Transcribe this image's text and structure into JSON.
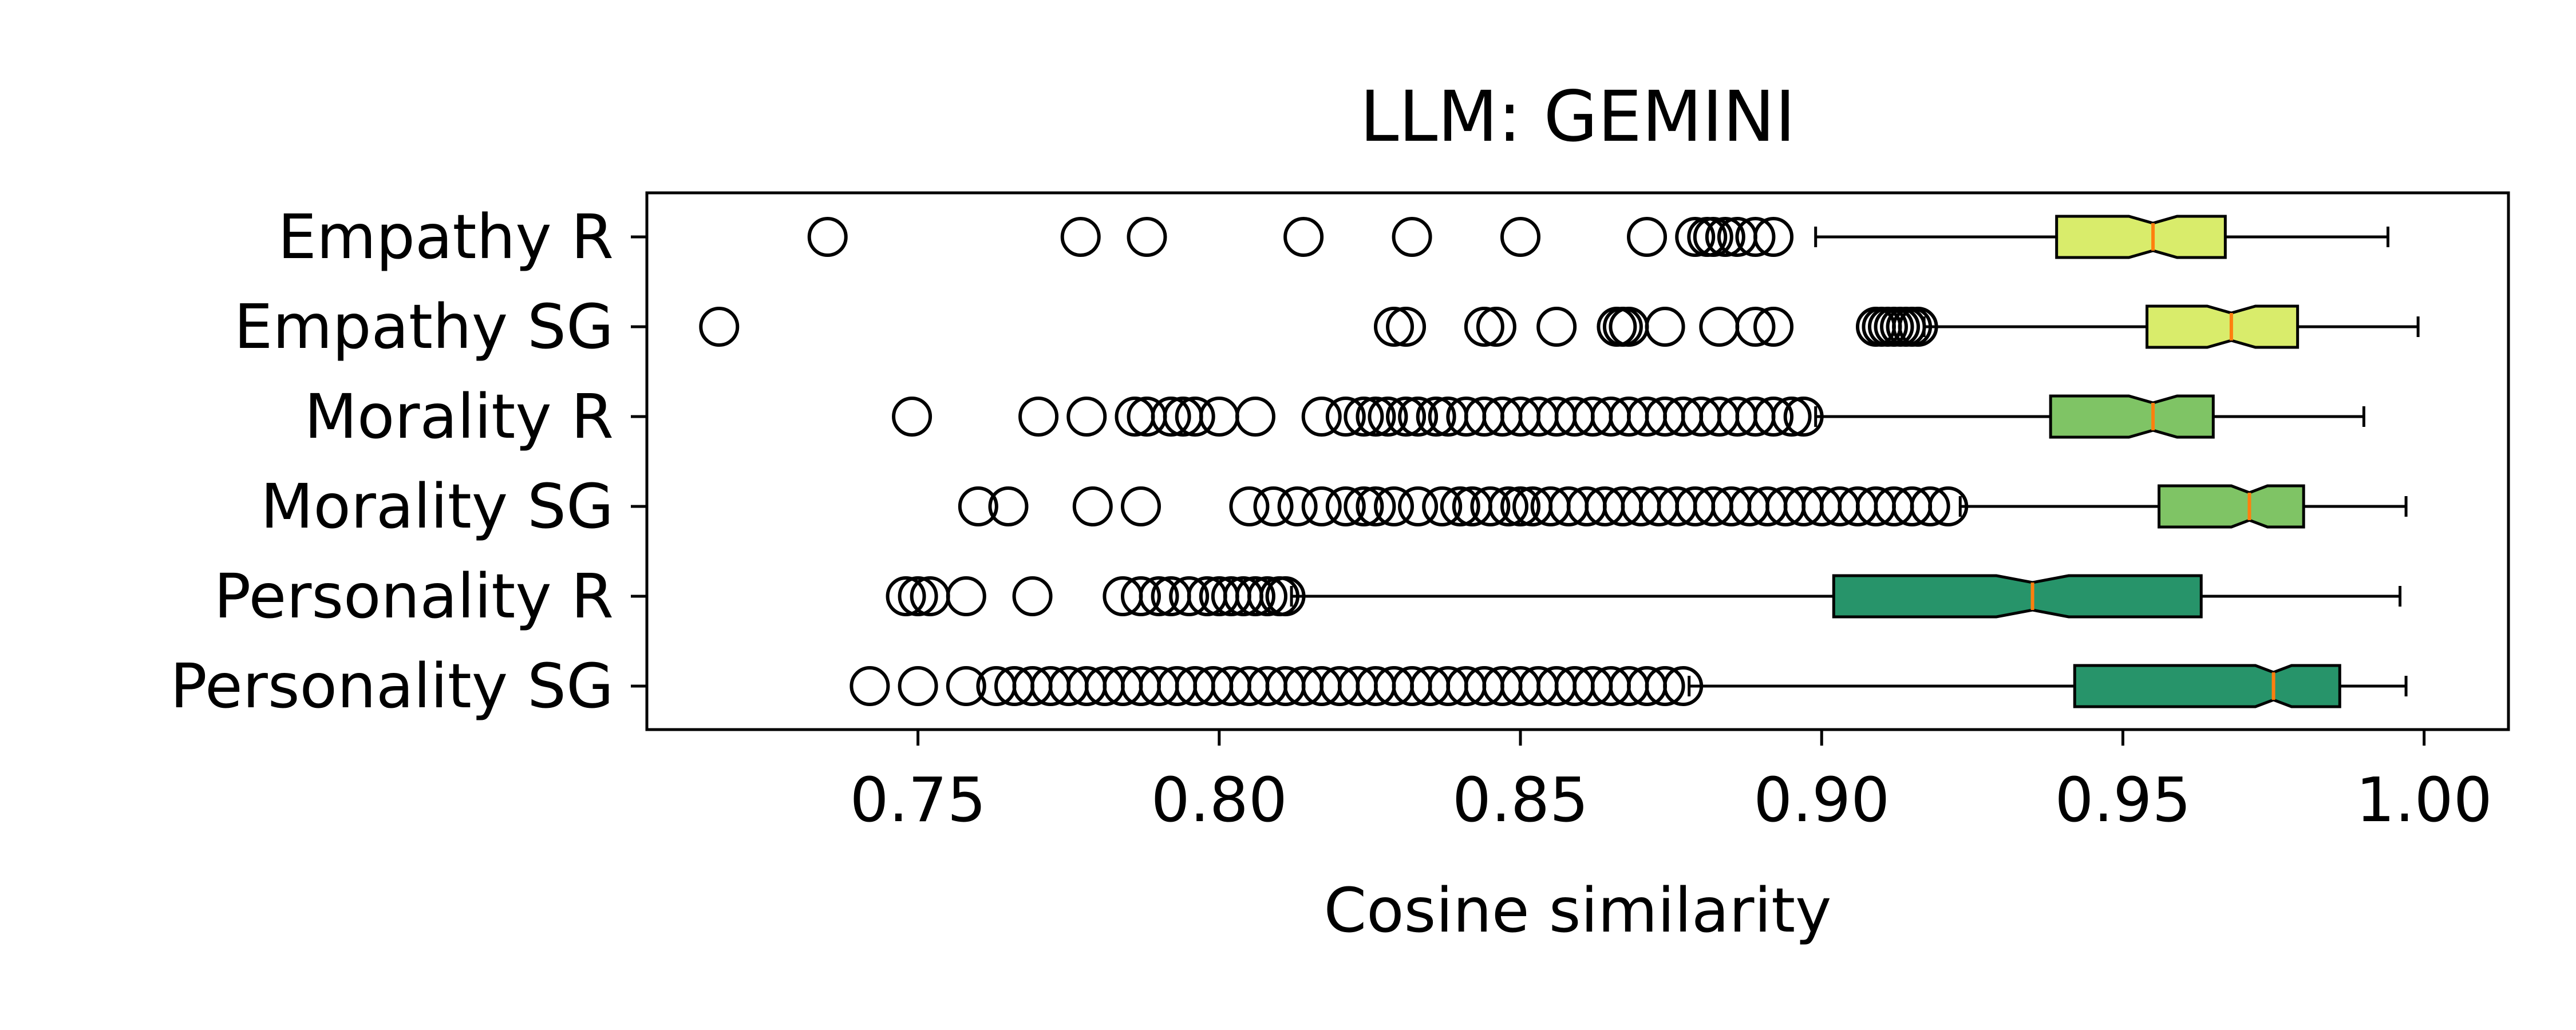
{
  "chart_data": {
    "type": "boxplot",
    "orientation": "horizontal",
    "title": "LLM: GEMINI",
    "xlabel": "Cosine similarity",
    "ylabel": "",
    "xlim": [
      0.705,
      1.014
    ],
    "xticks": [
      0.75,
      0.8,
      0.85,
      0.9,
      0.95,
      1.0
    ],
    "xtick_labels": [
      "0.75",
      "0.80",
      "0.85",
      "0.90",
      "0.95",
      "1.00"
    ],
    "grid": false,
    "notched": true,
    "median_color": "#ff7f0e",
    "series": [
      {
        "name": "Empathy   R",
        "color": "#d9ec6b",
        "whislo": 0.899,
        "q1": 0.939,
        "med": 0.955,
        "q3": 0.967,
        "whishi": 0.994,
        "notch": [
          0.951,
          0.959
        ],
        "fliers": [
          0.735,
          0.777,
          0.788,
          0.814,
          0.832,
          0.85,
          0.871,
          0.879,
          0.881,
          0.882,
          0.884,
          0.886,
          0.889,
          0.892
        ]
      },
      {
        "name": "Empathy SG",
        "color": "#d9ec6b",
        "whislo": 0.917,
        "q1": 0.954,
        "med": 0.968,
        "q3": 0.979,
        "whishi": 0.999,
        "notch": [
          0.964,
          0.972
        ],
        "fliers": [
          0.717,
          0.829,
          0.831,
          0.844,
          0.846,
          0.856,
          0.866,
          0.867,
          0.868,
          0.874,
          0.883,
          0.889,
          0.892,
          0.909,
          0.91,
          0.911,
          0.912,
          0.913,
          0.914,
          0.915,
          0.916
        ]
      },
      {
        "name": "Morality   R",
        "color": "#7fc465",
        "whislo": 0.899,
        "q1": 0.938,
        "med": 0.955,
        "q3": 0.965,
        "whishi": 0.99,
        "notch": [
          0.951,
          0.959
        ],
        "fliers": [
          0.749,
          0.77,
          0.778,
          0.786,
          0.788,
          0.792,
          0.794,
          0.796,
          0.8,
          0.806,
          0.817,
          0.821,
          0.824,
          0.826,
          0.828,
          0.831,
          0.833,
          0.836,
          0.838,
          0.841,
          0.844,
          0.847,
          0.85,
          0.853,
          0.856,
          0.859,
          0.862,
          0.865,
          0.868,
          0.871,
          0.874,
          0.877,
          0.88,
          0.883,
          0.886,
          0.889,
          0.892,
          0.895,
          0.897
        ]
      },
      {
        "name": "Morality SG",
        "color": "#7fc465",
        "whislo": 0.923,
        "q1": 0.956,
        "med": 0.971,
        "q3": 0.98,
        "whishi": 0.997,
        "notch": [
          0.968,
          0.974
        ],
        "fliers": [
          0.76,
          0.765,
          0.779,
          0.787,
          0.805,
          0.809,
          0.813,
          0.817,
          0.821,
          0.824,
          0.826,
          0.829,
          0.833,
          0.837,
          0.84,
          0.842,
          0.845,
          0.848,
          0.85,
          0.852,
          0.855,
          0.858,
          0.861,
          0.864,
          0.867,
          0.87,
          0.873,
          0.876,
          0.879,
          0.882,
          0.885,
          0.888,
          0.891,
          0.894,
          0.897,
          0.9,
          0.903,
          0.906,
          0.909,
          0.912,
          0.915,
          0.918,
          0.921
        ]
      },
      {
        "name": "Personality   R",
        "color": "#27946a",
        "whislo": 0.812,
        "q1": 0.902,
        "med": 0.935,
        "q3": 0.963,
        "whishi": 0.996,
        "notch": [
          0.929,
          0.941
        ],
        "fliers": [
          0.748,
          0.75,
          0.752,
          0.758,
          0.769,
          0.784,
          0.787,
          0.79,
          0.792,
          0.795,
          0.798,
          0.8,
          0.802,
          0.804,
          0.806,
          0.808,
          0.81,
          0.811
        ]
      },
      {
        "name": "Personality SG",
        "color": "#27946a",
        "whislo": 0.878,
        "q1": 0.942,
        "med": 0.975,
        "q3": 0.986,
        "whishi": 0.997,
        "notch": [
          0.972,
          0.978
        ],
        "fliers": [
          0.742,
          0.75,
          0.758,
          0.763,
          0.766,
          0.769,
          0.772,
          0.775,
          0.778,
          0.781,
          0.784,
          0.787,
          0.79,
          0.793,
          0.796,
          0.799,
          0.802,
          0.805,
          0.808,
          0.811,
          0.814,
          0.817,
          0.82,
          0.823,
          0.826,
          0.829,
          0.832,
          0.835,
          0.838,
          0.841,
          0.844,
          0.847,
          0.85,
          0.853,
          0.856,
          0.859,
          0.862,
          0.865,
          0.868,
          0.871,
          0.874,
          0.877
        ]
      }
    ]
  }
}
